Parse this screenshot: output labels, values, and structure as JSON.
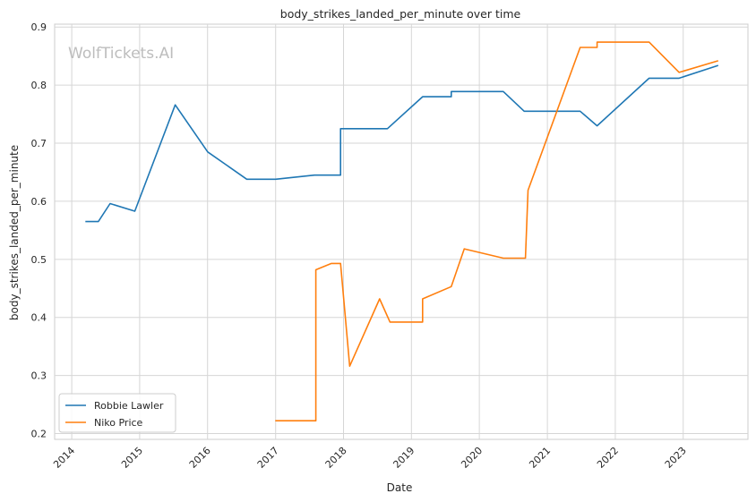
{
  "chart_data": {
    "type": "line",
    "title": "body_strikes_landed_per_minute over time",
    "xlabel": "Date",
    "ylabel": "body_strikes_landed_per_minute",
    "watermark": "WolfTickets.AI",
    "x_ticks": [
      "2014",
      "2015",
      "2016",
      "2017",
      "2018",
      "2019",
      "2020",
      "2021",
      "2022",
      "2023"
    ],
    "y_ticks": [
      "0.2",
      "0.3",
      "0.4",
      "0.5",
      "0.6",
      "0.7",
      "0.8",
      "0.9"
    ],
    "xlim": [
      "2013-10-01",
      "2023-12-15"
    ],
    "ylim": [
      0.19,
      0.905
    ],
    "grid": true,
    "legend_position": "lower-left",
    "series": [
      {
        "name": "Robbie Lawler",
        "color": "#1f77b4",
        "points": [
          [
            "2014-03-15",
            0.565
          ],
          [
            "2014-05-24",
            0.565
          ],
          [
            "2014-07-26",
            0.596
          ],
          [
            "2014-12-06",
            0.583
          ],
          [
            "2015-07-11",
            0.766
          ],
          [
            "2016-01-02",
            0.685
          ],
          [
            "2016-07-30",
            0.638
          ],
          [
            "2017-01-01",
            0.638
          ],
          [
            "2017-07-29",
            0.645
          ],
          [
            "2017-12-16",
            0.645
          ],
          [
            "2017-12-16",
            0.725
          ],
          [
            "2018-08-25",
            0.725
          ],
          [
            "2019-03-02",
            0.78
          ],
          [
            "2019-08-03",
            0.78
          ],
          [
            "2019-08-03",
            0.789
          ],
          [
            "2020-05-09",
            0.789
          ],
          [
            "2020-08-29",
            0.755
          ],
          [
            "2021-06-26",
            0.755
          ],
          [
            "2021-09-25",
            0.73
          ],
          [
            "2022-07-02",
            0.812
          ],
          [
            "2022-12-10",
            0.812
          ],
          [
            "2023-07-08",
            0.834
          ]
        ]
      },
      {
        "name": "Niko Price",
        "color": "#ff7f0e",
        "points": [
          [
            "2016-12-30",
            0.222
          ],
          [
            "2017-08-05",
            0.222
          ],
          [
            "2017-08-05",
            0.482
          ],
          [
            "2017-10-28",
            0.493
          ],
          [
            "2017-12-16",
            0.493
          ],
          [
            "2018-02-03",
            0.316
          ],
          [
            "2018-07-14",
            0.432
          ],
          [
            "2018-09-08",
            0.392
          ],
          [
            "2019-03-02",
            0.392
          ],
          [
            "2019-03-02",
            0.432
          ],
          [
            "2019-08-03",
            0.453
          ],
          [
            "2019-10-12",
            0.518
          ],
          [
            "2020-05-09",
            0.502
          ],
          [
            "2020-09-05",
            0.502
          ],
          [
            "2020-09-19",
            0.619
          ],
          [
            "2021-06-26",
            0.865
          ],
          [
            "2021-09-25",
            0.865
          ],
          [
            "2021-09-25",
            0.874
          ],
          [
            "2022-07-02",
            0.874
          ],
          [
            "2022-12-10",
            0.822
          ],
          [
            "2023-07-08",
            0.842
          ]
        ]
      }
    ]
  }
}
